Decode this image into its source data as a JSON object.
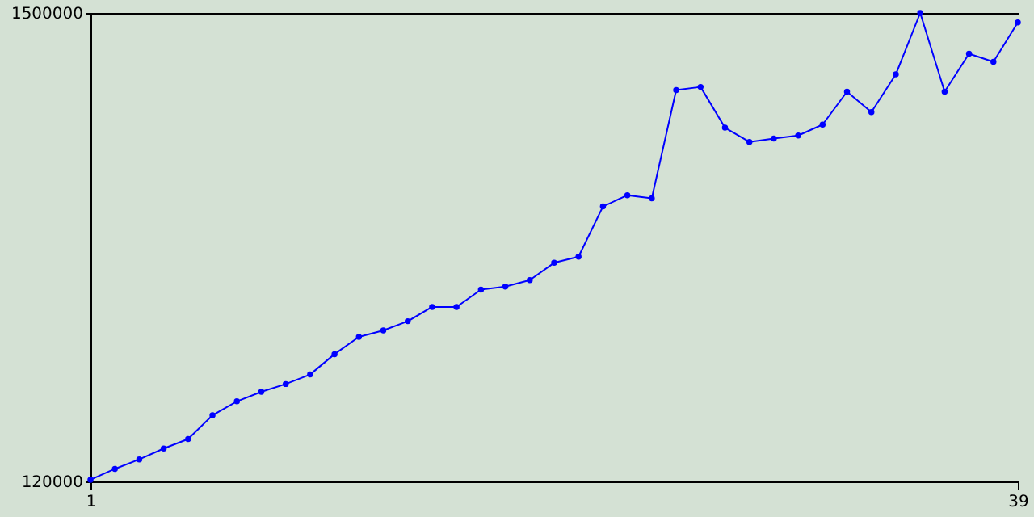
{
  "chart_data": {
    "type": "line",
    "x": [
      1,
      2,
      3,
      4,
      5,
      6,
      7,
      8,
      9,
      10,
      11,
      12,
      13,
      14,
      15,
      16,
      17,
      18,
      19,
      20,
      21,
      22,
      23,
      24,
      25,
      26,
      27,
      28,
      29,
      30,
      31,
      32,
      33,
      34,
      35,
      36,
      37,
      38,
      39
    ],
    "series": [
      {
        "color": "#0000ff",
        "values": [
          125000,
          157000,
          185000,
          217000,
          245000,
          315000,
          356000,
          384000,
          407000,
          435000,
          495000,
          546000,
          565000,
          592000,
          634000,
          634000,
          685000,
          694000,
          713000,
          764000,
          782000,
          930000,
          963000,
          954000,
          1273000,
          1282000,
          1162000,
          1120000,
          1130000,
          1139000,
          1171000,
          1268000,
          1208000,
          1319000,
          1500000,
          1268000,
          1380000,
          1356000,
          1472000
        ]
      }
    ],
    "xlim": [
      1,
      39
    ],
    "xticks": [
      1,
      39
    ],
    "ylim": [
      120000,
      1500000
    ],
    "yticks": [
      120000,
      1500000
    ],
    "marker": "circle",
    "legend": false
  }
}
